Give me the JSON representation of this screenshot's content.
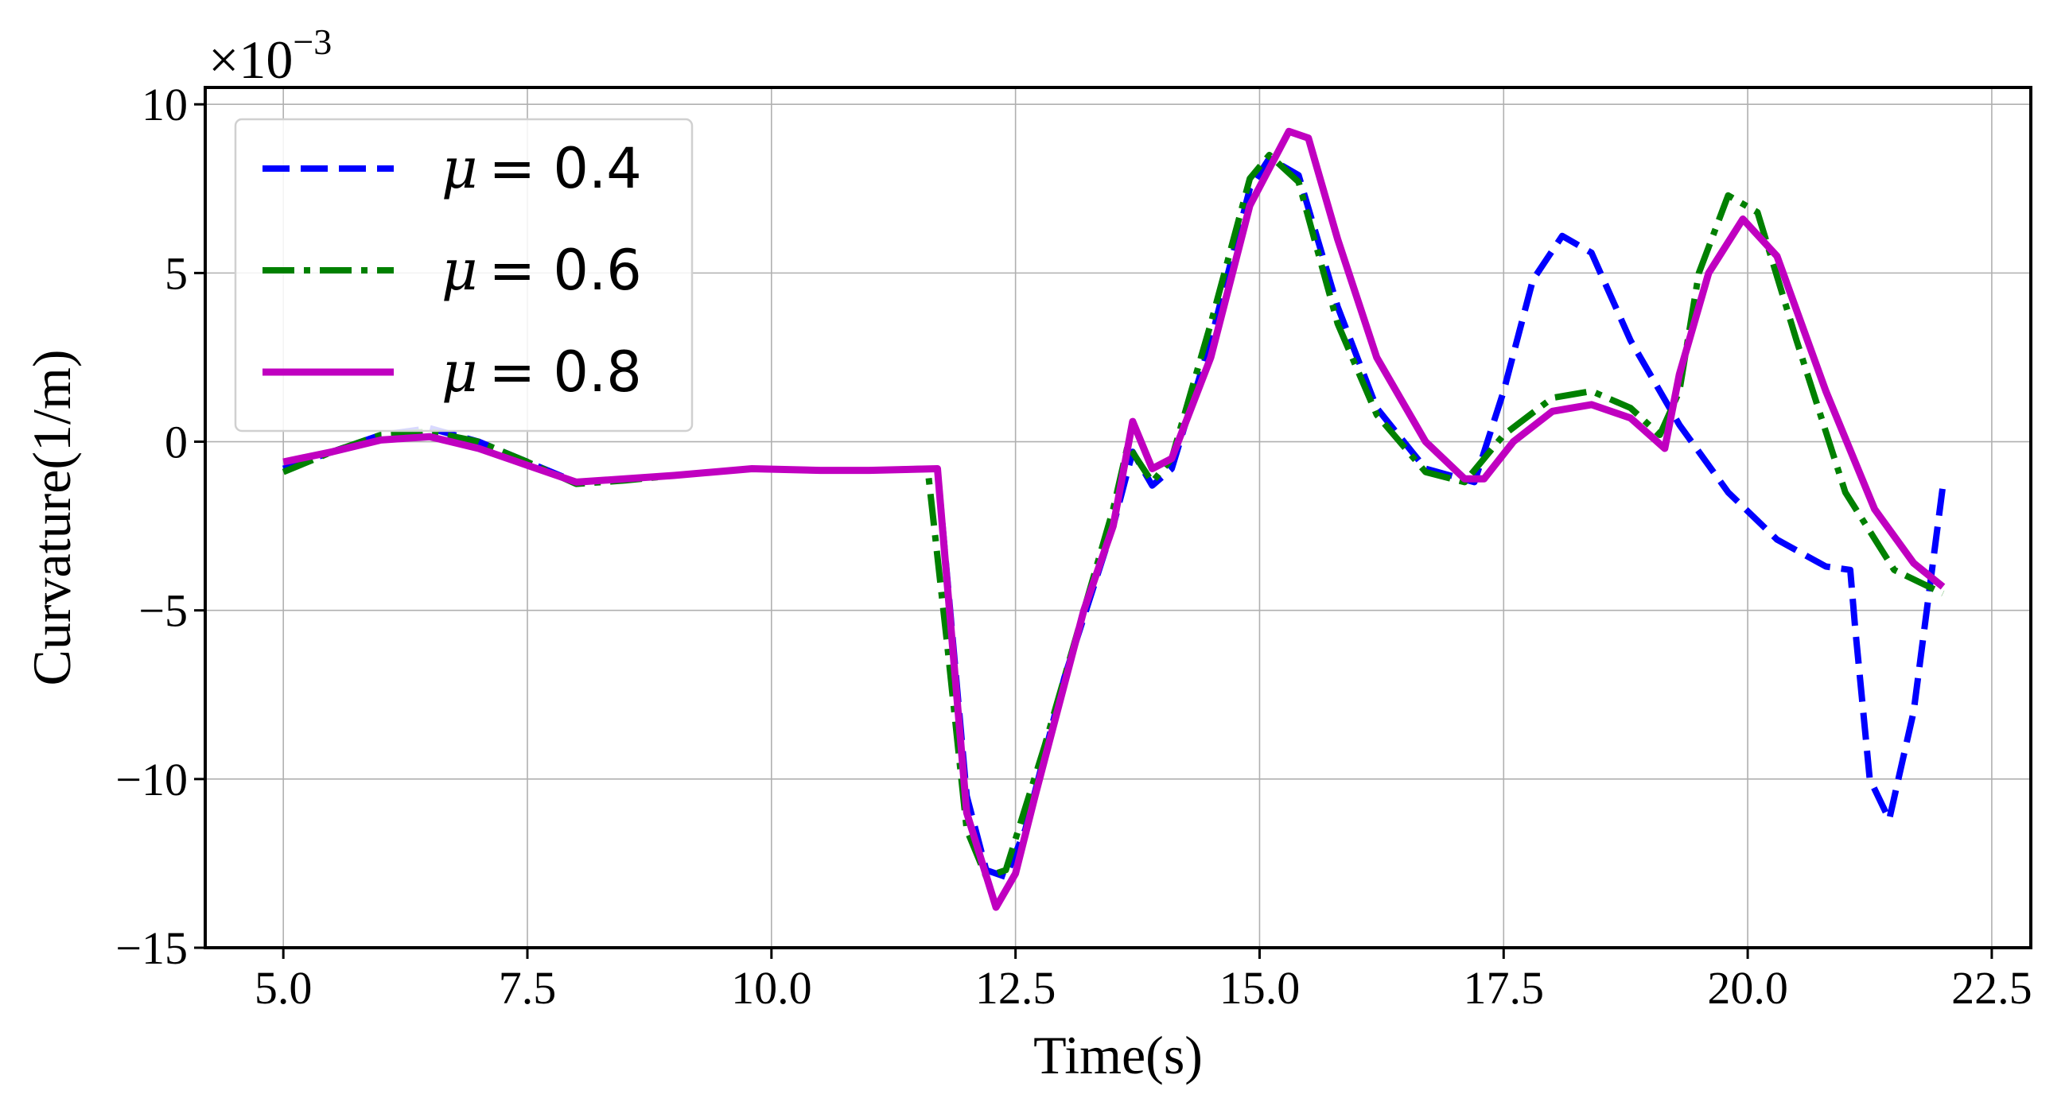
{
  "chart_data": {
    "type": "line",
    "xlabel": "Time(s)",
    "ylabel": "Curvature(1/m)",
    "y_scale_label": {
      "base": "×10",
      "exponent": "−3"
    },
    "xlim": [
      4.2,
      22.9
    ],
    "ylim": [
      -15,
      10.5
    ],
    "xticks": [
      5.0,
      7.5,
      10.0,
      12.5,
      15.0,
      17.5,
      20.0,
      22.5
    ],
    "xtick_labels": [
      "5.0",
      "7.5",
      "10.0",
      "12.5",
      "15.0",
      "17.5",
      "20.0",
      "22.5"
    ],
    "yticks": [
      10,
      5,
      0,
      -5,
      -10,
      -15
    ],
    "ytick_labels": [
      "10",
      "5",
      "0",
      "−5",
      "−10",
      "−15"
    ],
    "grid": true,
    "legend_position": "upper-left",
    "series": [
      {
        "name": "μ = 0.4",
        "legend_var": "μ",
        "legend_value": "= 0.4",
        "color": "#0000ff",
        "style": "dashed",
        "points": [
          [
            5.0,
            -0.8
          ],
          [
            5.5,
            -0.3
          ],
          [
            6.0,
            0.2
          ],
          [
            6.5,
            0.4
          ],
          [
            7.0,
            0.0
          ],
          [
            7.5,
            -0.6
          ],
          [
            8.0,
            -1.2
          ],
          [
            8.5,
            -1.1
          ],
          [
            9.0,
            -1.0
          ],
          [
            9.8,
            -0.8
          ],
          [
            10.5,
            -0.85
          ],
          [
            11.0,
            -0.85
          ],
          [
            11.7,
            -0.8
          ],
          [
            11.8,
            -4.0
          ],
          [
            12.0,
            -10.5
          ],
          [
            12.2,
            -12.7
          ],
          [
            12.4,
            -12.9
          ],
          [
            12.6,
            -11.5
          ],
          [
            13.0,
            -7.0
          ],
          [
            13.5,
            -2.5
          ],
          [
            13.7,
            -0.3
          ],
          [
            13.9,
            -1.3
          ],
          [
            14.1,
            -0.8
          ],
          [
            14.5,
            3.0
          ],
          [
            14.9,
            7.5
          ],
          [
            15.1,
            8.4
          ],
          [
            15.4,
            7.9
          ],
          [
            15.8,
            4.0
          ],
          [
            16.2,
            1.0
          ],
          [
            16.7,
            -0.8
          ],
          [
            17.2,
            -1.2
          ],
          [
            17.5,
            1.5
          ],
          [
            17.8,
            4.8
          ],
          [
            18.1,
            6.1
          ],
          [
            18.4,
            5.6
          ],
          [
            18.8,
            3.0
          ],
          [
            19.3,
            0.5
          ],
          [
            19.8,
            -1.5
          ],
          [
            20.3,
            -2.9
          ],
          [
            20.8,
            -3.7
          ],
          [
            21.05,
            -3.8
          ],
          [
            21.1,
            -5.5
          ],
          [
            21.25,
            -10.0
          ],
          [
            21.45,
            -11.2
          ],
          [
            21.7,
            -8.0
          ],
          [
            22.0,
            -1.3
          ]
        ]
      },
      {
        "name": "μ = 0.6",
        "legend_var": "μ",
        "legend_value": "= 0.6",
        "color": "#008000",
        "style": "dashdot",
        "points": [
          [
            5.0,
            -0.9
          ],
          [
            5.5,
            -0.3
          ],
          [
            6.0,
            0.2
          ],
          [
            6.5,
            0.3
          ],
          [
            7.0,
            0.0
          ],
          [
            7.5,
            -0.6
          ],
          [
            8.0,
            -1.25
          ],
          [
            8.5,
            -1.15
          ],
          [
            9.0,
            -1.0
          ],
          [
            9.8,
            -0.8
          ],
          [
            10.5,
            -0.85
          ],
          [
            11.0,
            -0.85
          ],
          [
            11.6,
            -0.8
          ],
          [
            11.8,
            -6.0
          ],
          [
            12.0,
            -11.5
          ],
          [
            12.2,
            -12.9
          ],
          [
            12.4,
            -12.7
          ],
          [
            12.8,
            -9.0
          ],
          [
            13.2,
            -5.0
          ],
          [
            13.5,
            -2.0
          ],
          [
            13.65,
            -0.1
          ],
          [
            13.9,
            -1.2
          ],
          [
            14.1,
            -0.5
          ],
          [
            14.5,
            3.5
          ],
          [
            14.9,
            7.8
          ],
          [
            15.1,
            8.5
          ],
          [
            15.4,
            7.7
          ],
          [
            15.8,
            3.5
          ],
          [
            16.2,
            0.8
          ],
          [
            16.7,
            -0.9
          ],
          [
            17.1,
            -1.2
          ],
          [
            17.5,
            0.2
          ],
          [
            18.0,
            1.3
          ],
          [
            18.4,
            1.5
          ],
          [
            18.8,
            1.0
          ],
          [
            19.1,
            0.2
          ],
          [
            19.3,
            1.5
          ],
          [
            19.5,
            5.0
          ],
          [
            19.8,
            7.3
          ],
          [
            20.1,
            6.8
          ],
          [
            20.5,
            3.0
          ],
          [
            21.0,
            -1.5
          ],
          [
            21.5,
            -3.8
          ],
          [
            22.0,
            -4.5
          ]
        ]
      },
      {
        "name": "μ = 0.8",
        "legend_var": "μ",
        "legend_value": "= 0.8",
        "color": "#c000c0",
        "style": "solid",
        "points": [
          [
            5.0,
            -0.6
          ],
          [
            5.5,
            -0.3
          ],
          [
            6.0,
            0.05
          ],
          [
            6.5,
            0.15
          ],
          [
            7.0,
            -0.2
          ],
          [
            7.5,
            -0.7
          ],
          [
            8.0,
            -1.2
          ],
          [
            8.5,
            -1.1
          ],
          [
            9.0,
            -1.0
          ],
          [
            9.8,
            -0.8
          ],
          [
            10.5,
            -0.85
          ],
          [
            11.0,
            -0.85
          ],
          [
            11.7,
            -0.8
          ],
          [
            11.75,
            -2.5
          ],
          [
            12.0,
            -11.0
          ],
          [
            12.3,
            -13.8
          ],
          [
            12.5,
            -12.8
          ],
          [
            12.7,
            -10.5
          ],
          [
            13.2,
            -5.0
          ],
          [
            13.5,
            -2.5
          ],
          [
            13.7,
            0.6
          ],
          [
            13.9,
            -0.8
          ],
          [
            14.1,
            -0.5
          ],
          [
            14.5,
            2.5
          ],
          [
            14.9,
            7.0
          ],
          [
            15.3,
            9.2
          ],
          [
            15.5,
            9.0
          ],
          [
            15.8,
            6.0
          ],
          [
            16.2,
            2.5
          ],
          [
            16.7,
            0.0
          ],
          [
            17.1,
            -1.1
          ],
          [
            17.3,
            -1.1
          ],
          [
            17.6,
            0.0
          ],
          [
            18.0,
            0.9
          ],
          [
            18.4,
            1.1
          ],
          [
            18.8,
            0.7
          ],
          [
            19.15,
            -0.2
          ],
          [
            19.3,
            2.0
          ],
          [
            19.6,
            5.0
          ],
          [
            19.95,
            6.6
          ],
          [
            20.3,
            5.5
          ],
          [
            20.8,
            1.5
          ],
          [
            21.3,
            -2.0
          ],
          [
            21.7,
            -3.6
          ],
          [
            22.0,
            -4.3
          ]
        ]
      }
    ]
  }
}
